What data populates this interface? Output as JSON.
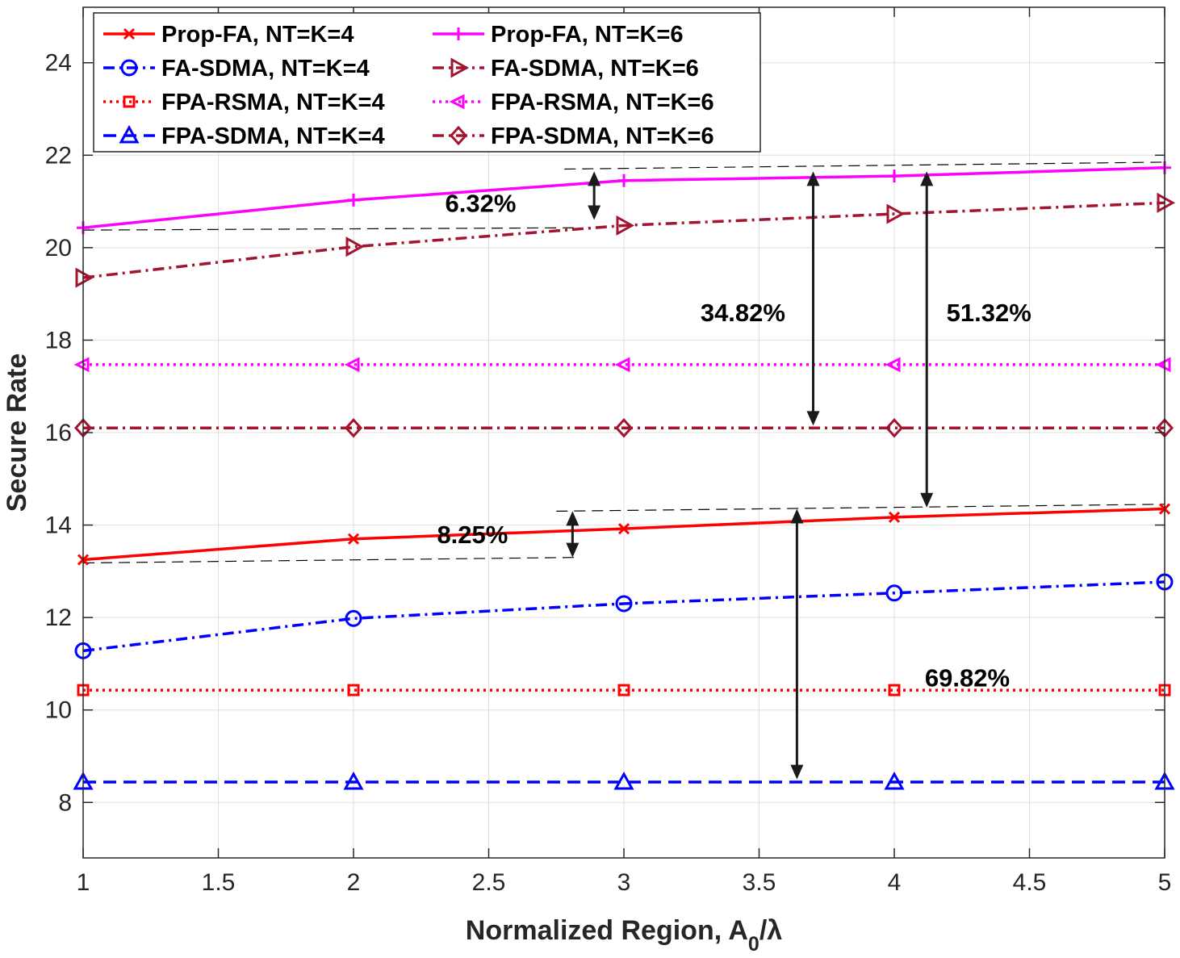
{
  "chart_data": {
    "type": "line",
    "title": "",
    "xlabel": "Normalized Region, A",
    "xlabel_sub": "0",
    "xlabel_suffix": "/λ",
    "ylabel": "Secure Rate",
    "xlim": [
      1,
      5
    ],
    "ylim": [
      6.8,
      25.2
    ],
    "xticks": [
      1,
      1.5,
      2,
      2.5,
      3,
      3.5,
      4,
      4.5,
      5
    ],
    "xtick_labels": [
      "1",
      "1.5",
      "2",
      "2.5",
      "3",
      "3.5",
      "4",
      "4.5",
      "5"
    ],
    "yticks": [
      8,
      10,
      12,
      14,
      16,
      18,
      20,
      22,
      24
    ],
    "ytick_labels": [
      "8",
      "10",
      "12",
      "14",
      "16",
      "18",
      "20",
      "22",
      "24"
    ],
    "grid": true,
    "legend_position": "top-left",
    "x": [
      1,
      2,
      3,
      4,
      5
    ],
    "series": [
      {
        "name": "Prop-FA, NT=K=4",
        "values": [
          13.25,
          13.7,
          13.92,
          14.17,
          14.35
        ],
        "color": "#ff0000",
        "dash": "solid",
        "marker": "x"
      },
      {
        "name": "FA-SDMA, NT=K=4",
        "values": [
          11.28,
          11.98,
          12.3,
          12.53,
          12.77
        ],
        "color": "#0000ff",
        "dash": "dashdot",
        "marker": "circle"
      },
      {
        "name": "FPA-RSMA, NT=K=4",
        "values": [
          10.43,
          10.43,
          10.43,
          10.43,
          10.43
        ],
        "color": "#ff0000",
        "dash": "dotted",
        "marker": "square"
      },
      {
        "name": "FPA-SDMA, NT=K=4",
        "values": [
          8.44,
          8.44,
          8.44,
          8.44,
          8.44
        ],
        "color": "#0000ff",
        "dash": "dashed",
        "marker": "triangle-up"
      },
      {
        "name": "Prop-FA, NT=K=6",
        "values": [
          20.43,
          21.03,
          21.45,
          21.55,
          21.73
        ],
        "color": "#ff00ff",
        "dash": "solid",
        "marker": "plus"
      },
      {
        "name": "FA-SDMA, NT=K=6",
        "values": [
          19.35,
          20.02,
          20.48,
          20.73,
          20.97
        ],
        "color": "#a2142f",
        "dash": "dashdot",
        "marker": "triangle-right"
      },
      {
        "name": "FPA-RSMA, NT=K=6",
        "values": [
          17.47,
          17.47,
          17.47,
          17.47,
          17.47
        ],
        "color": "#ff00ff",
        "dash": "dotted",
        "marker": "triangle-left"
      },
      {
        "name": "FPA-SDMA, NT=K=6",
        "values": [
          16.1,
          16.1,
          16.1,
          16.1,
          16.1
        ],
        "color": "#a2142f",
        "dash": "dashdot",
        "marker": "diamond"
      }
    ],
    "annotations": [
      {
        "text": "6.32%",
        "x": 2.47,
        "y": 20.97
      },
      {
        "text": "34.82%",
        "x": 3.44,
        "y": 18.6
      },
      {
        "text": "51.32%",
        "x": 4.35,
        "y": 18.6
      },
      {
        "text": "8.25%",
        "x": 2.44,
        "y": 13.8
      },
      {
        "text": "69.82%",
        "x": 4.27,
        "y": 10.7
      }
    ],
    "arrows": [
      {
        "x": 2.89,
        "y1": 20.6,
        "y2": 21.65
      },
      {
        "x": 3.7,
        "y1": 16.15,
        "y2": 21.65
      },
      {
        "x": 4.12,
        "y1": 14.38,
        "y2": 21.65
      },
      {
        "x": 2.81,
        "y1": 13.3,
        "y2": 14.3
      },
      {
        "x": 3.64,
        "y1": 8.5,
        "y2": 14.35
      }
    ],
    "guide_lines": [
      {
        "x1": 1,
        "y1": 20.38,
        "x2": 2.82,
        "y2": 20.43
      },
      {
        "x1": 2.78,
        "y1": 21.7,
        "x2": 5,
        "y2": 21.85
      },
      {
        "x1": 1,
        "y1": 13.18,
        "x2": 2.82,
        "y2": 13.3
      },
      {
        "x1": 2.75,
        "y1": 14.3,
        "x2": 5,
        "y2": 14.45
      }
    ]
  }
}
